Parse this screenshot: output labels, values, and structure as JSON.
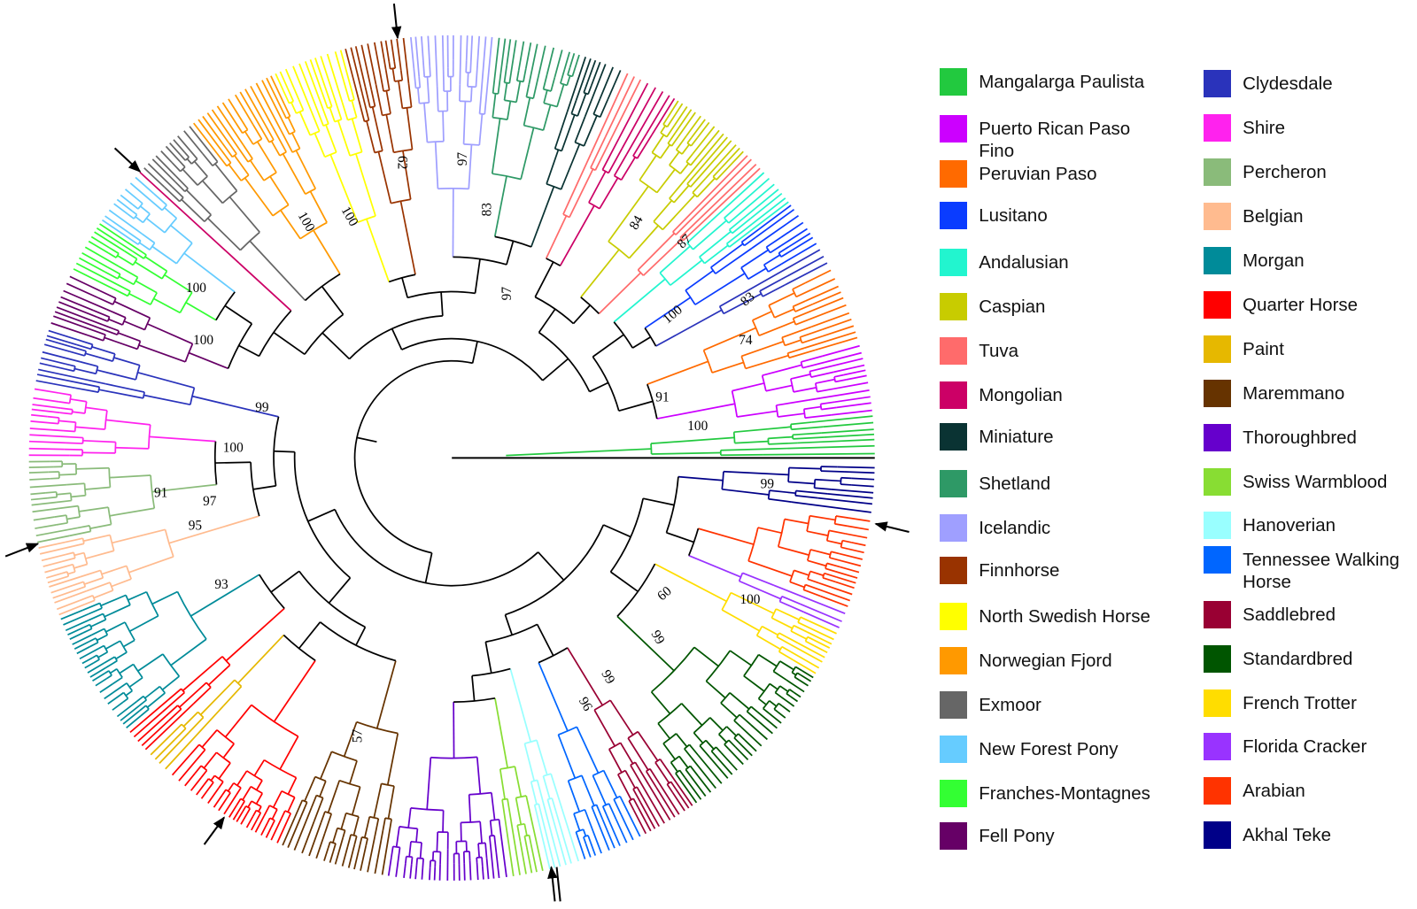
{
  "legend": {
    "items": [
      {
        "name": "Mangalarga Paulista",
        "color": "#22c93f"
      },
      {
        "name": "Puerto Rican Paso Fino",
        "color": "#cc00ff"
      },
      {
        "name": "Peruvian Paso",
        "color": "#ff6a00"
      },
      {
        "name": "Lusitano",
        "color": "#0a3cff"
      },
      {
        "name": "Andalusian",
        "color": "#22f5cf"
      },
      {
        "name": "Caspian",
        "color": "#c8cc00"
      },
      {
        "name": "Tuva",
        "color": "#ff6b6b"
      },
      {
        "name": "Mongolian",
        "color": "#cc0066"
      },
      {
        "name": "Miniature",
        "color": "#0a3333"
      },
      {
        "name": "Shetland",
        "color": "#2e9966"
      },
      {
        "name": "Icelandic",
        "color": "#9f9fff"
      },
      {
        "name": "Finnhorse",
        "color": "#993300"
      },
      {
        "name": "North Swedish Horse",
        "color": "#ffff00"
      },
      {
        "name": "Norwegian Fjord",
        "color": "#ff9900"
      },
      {
        "name": "Exmoor",
        "color": "#666666"
      },
      {
        "name": "New Forest Pony",
        "color": "#66ccff"
      },
      {
        "name": "Franches-Montagnes",
        "color": "#33ff33"
      },
      {
        "name": "Fell Pony",
        "color": "#660066"
      },
      {
        "name": "Clydesdale",
        "color": "#2a33bb"
      },
      {
        "name": "Shire",
        "color": "#ff22ee"
      },
      {
        "name": "Percheron",
        "color": "#8abb7a"
      },
      {
        "name": "Belgian",
        "color": "#ffbb8f"
      },
      {
        "name": "Morgan",
        "color": "#008b99"
      },
      {
        "name": "Quarter Horse",
        "color": "#ff0000"
      },
      {
        "name": "Paint",
        "color": "#e6b800"
      },
      {
        "name": "Maremmano",
        "color": "#663300"
      },
      {
        "name": "Thoroughbred",
        "color": "#6600cc"
      },
      {
        "name": "Swiss Warmblood",
        "color": "#88dd33"
      },
      {
        "name": "Hanoverian",
        "color": "#99ffff"
      },
      {
        "name": "Tennessee Walking Horse",
        "color": "#0066ff"
      },
      {
        "name": "Saddlebred",
        "color": "#990033"
      },
      {
        "name": "Standardbred",
        "color": "#005500"
      },
      {
        "name": "French Trotter",
        "color": "#ffdd00"
      },
      {
        "name": "Florida Cracker",
        "color": "#9933ff"
      },
      {
        "name": "Arabian",
        "color": "#ff3300"
      },
      {
        "name": "Akhal Teke",
        "color": "#000088"
      }
    ]
  },
  "bootstrap_labels": [
    "100",
    "100",
    "62",
    "97",
    "83",
    "97",
    "84",
    "87",
    "83",
    "100",
    "74",
    "91",
    "100",
    "100",
    "100",
    "99",
    "100",
    "91",
    "97",
    "95",
    "93",
    "57",
    "99",
    "60",
    "100",
    "99",
    "99",
    "96"
  ]
}
